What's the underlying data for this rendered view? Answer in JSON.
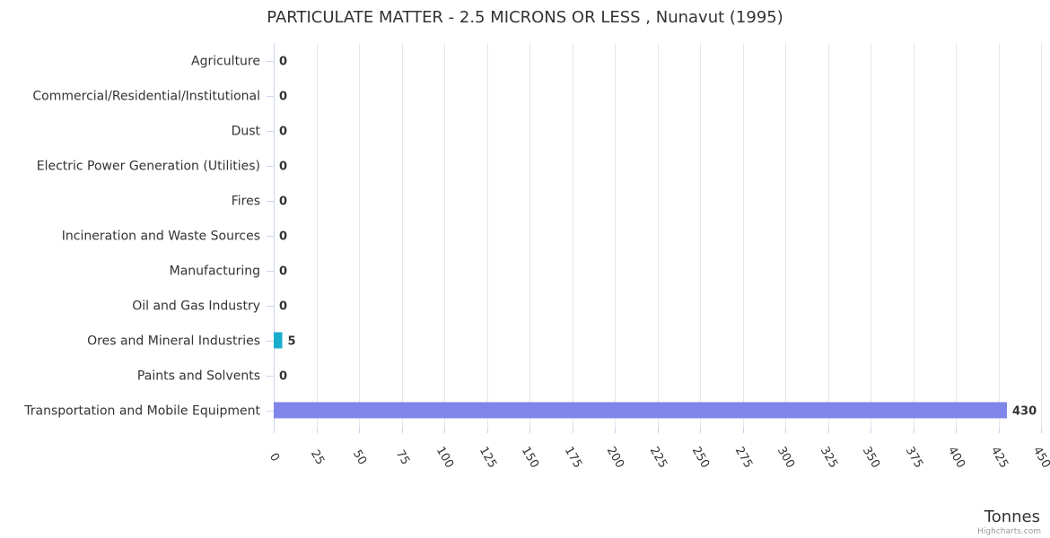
{
  "chart_data": {
    "type": "bar",
    "orientation": "horizontal",
    "title": "PARTICULATE MATTER - 2.5 MICRONS OR LESS , Nunavut (1995)",
    "categories": [
      "Agriculture",
      "Commercial/Residential/Institutional",
      "Dust",
      "Electric Power Generation (Utilities)",
      "Fires",
      "Incineration and Waste Sources",
      "Manufacturing",
      "Oil and Gas Industry",
      "Ores and Mineral Industries",
      "Paints and Solvents",
      "Transportation and Mobile Equipment"
    ],
    "values": [
      0,
      0,
      0,
      0,
      0,
      0,
      0,
      0,
      5,
      0,
      430
    ],
    "data_labels": [
      "0",
      "0",
      "0",
      "0",
      "0",
      "0",
      "0",
      "0",
      "5",
      "0",
      "430"
    ],
    "bar_colors": [
      "#7cb5ec",
      "#434348",
      "#90ed7d",
      "#f7a35c",
      "#8085e9",
      "#f15c80",
      "#e4d354",
      "#2b908f",
      "#1aadce",
      "#492970",
      "#8085e9"
    ],
    "xlim": [
      0,
      450
    ],
    "x_ticks": [
      0,
      25,
      50,
      75,
      100,
      125,
      150,
      175,
      200,
      225,
      250,
      275,
      300,
      325,
      350,
      375,
      400,
      425,
      450
    ],
    "xlabel": "Tonnes",
    "ylabel": "",
    "grid": true,
    "legend": "none"
  },
  "credits": "Highcharts.com"
}
